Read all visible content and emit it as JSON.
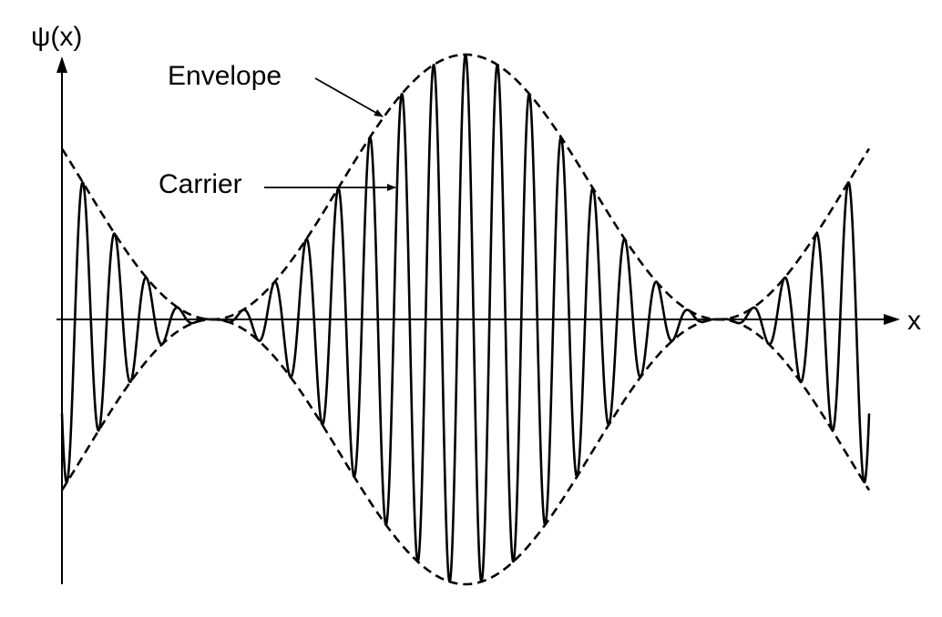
{
  "figure": {
    "y_axis_label": "ψ(x)",
    "x_axis_label": "x",
    "annotations": {
      "envelope": "Envelope",
      "carrier": "Carrier"
    },
    "colors": {
      "ink": "#000000",
      "background": "#ffffff"
    },
    "curves": {
      "envelope_style": "dashed",
      "carrier_style": "solid"
    }
  }
}
